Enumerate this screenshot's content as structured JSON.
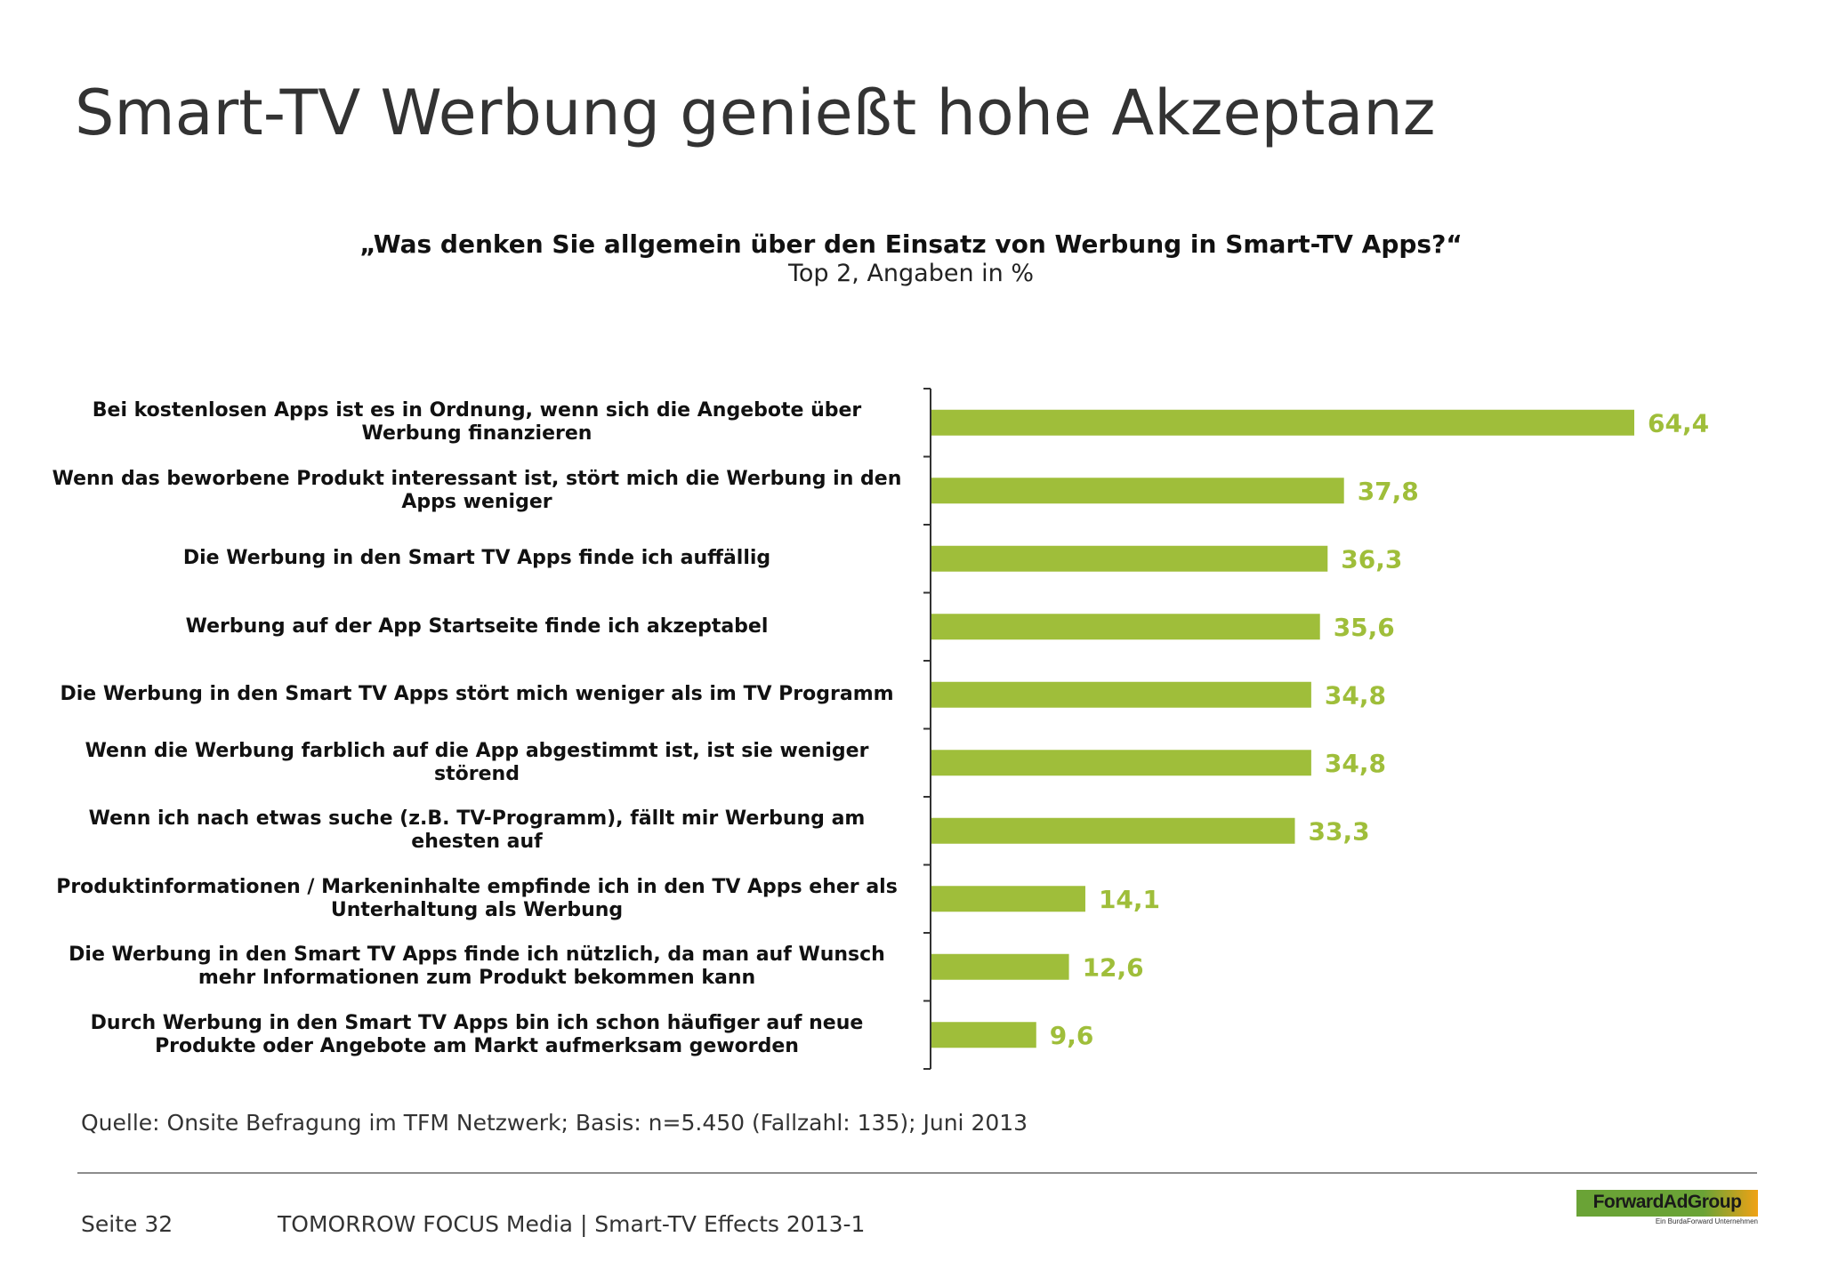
{
  "slide": {
    "title": "Smart-TV Werbung genießt hohe Akzeptanz"
  },
  "chart_data": {
    "type": "bar",
    "orientation": "horizontal",
    "title": "„Was denken Sie allgemein über den Einsatz von Werbung in Smart-TV Apps?“",
    "subtitle": "Top 2, Angaben in %",
    "xlabel": "",
    "ylabel": "",
    "xlim": [
      0,
      70
    ],
    "grid": false,
    "legend": "none",
    "bar_color": "#9fbe3a",
    "label_color": "#9fbe3a",
    "categories": [
      "Bei kostenlosen Apps ist es in Ordnung, wenn sich die Angebote über Werbung finanzieren",
      "Wenn das beworbene Produkt interessant ist, stört mich die Werbung in den Apps weniger",
      "Die Werbung in den Smart TV Apps finde ich auffällig",
      "Werbung auf der App Startseite finde ich akzeptabel",
      "Die Werbung in den Smart TV Apps stört mich weniger als im TV Programm",
      "Wenn die Werbung farblich auf die App abgestimmt ist, ist sie weniger störend",
      "Wenn ich nach etwas suche (z.B. TV-Programm), fällt mir Werbung am ehesten auf",
      "Produktinformationen / Markeninhalte empfinde ich in den TV Apps eher als Unterhaltung als Werbung",
      "Die Werbung in den Smart TV Apps finde ich nützlich, da man auf Wunsch mehr Informationen zum Produkt bekommen kann",
      "Durch Werbung in den Smart TV Apps bin ich schon häufiger auf neue Produkte oder Angebote am Markt aufmerksam geworden"
    ],
    "values": [
      64.4,
      37.8,
      36.3,
      35.6,
      34.8,
      34.8,
      33.3,
      14.1,
      12.6,
      9.6
    ],
    "value_labels": [
      "64,4",
      "37,8",
      "36,3",
      "35,6",
      "34,8",
      "34,8",
      "33,3",
      "14,1",
      "12,6",
      "9,6"
    ]
  },
  "source": "Quelle: Onsite Befragung im TFM Netzwerk; Basis: n=5.450 (Fallzahl: 135); Juni 2013",
  "footer": {
    "page": "Seite 32",
    "text": "TOMORROW FOCUS Media  |  Smart-TV Effects 2013-1"
  },
  "logo": {
    "name": "ForwardAdGroup",
    "tagline": "Ein BurdaForward Unternehmen"
  }
}
